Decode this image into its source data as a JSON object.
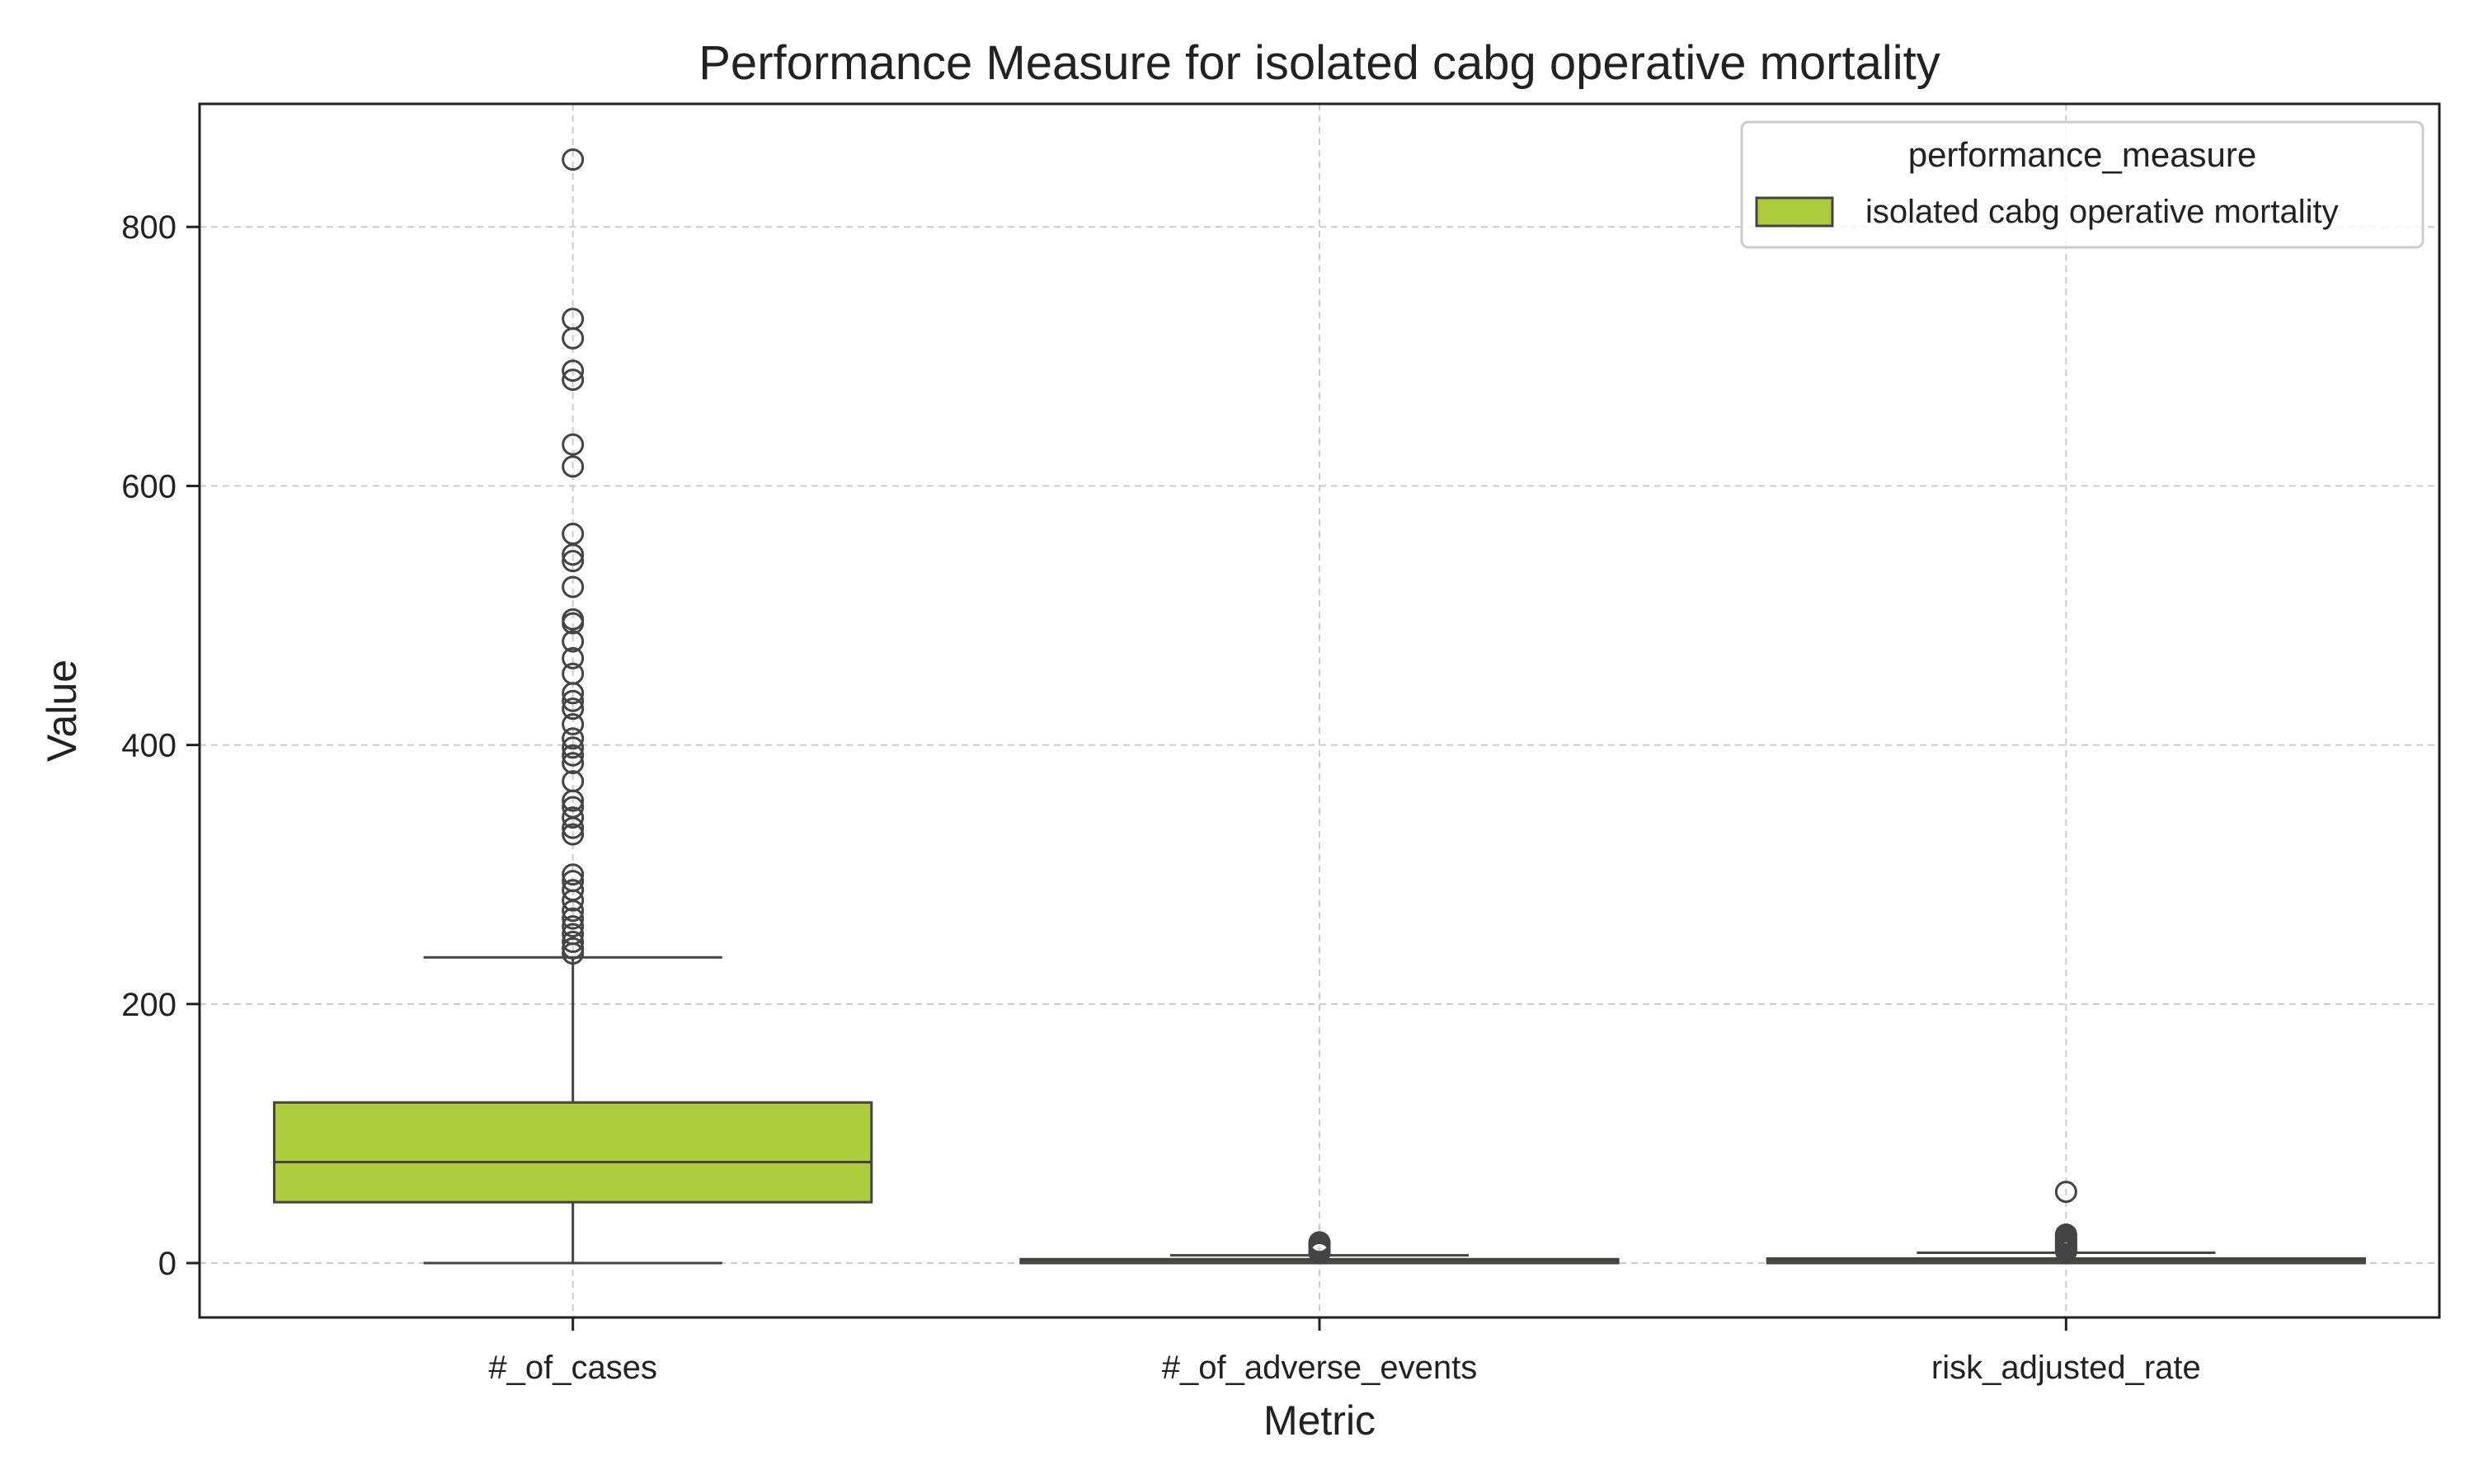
{
  "chart_data": {
    "type": "box",
    "title": "Performance Measure for isolated cabg operative mortality",
    "xlabel": "Metric",
    "ylabel": "Value",
    "ylim": [
      -42,
      895
    ],
    "yticks": [
      0,
      200,
      400,
      600,
      800
    ],
    "grid": true,
    "categories": [
      "#_of_cases",
      "#_of_adverse_events",
      "risk_adjusted_rate"
    ],
    "legend": {
      "title": "performance_measure",
      "position": "top-right",
      "entries": [
        {
          "label": "isolated cabg operative mortality",
          "color": "#adcc3c"
        }
      ]
    },
    "series": [
      {
        "name": "isolated cabg operative mortality",
        "color": "#adcc3c",
        "boxes": [
          {
            "category": "#_of_cases",
            "whisker_low": 0,
            "q1": 47,
            "median": 78,
            "q3": 124,
            "whisker_high": 236,
            "outliers": [
              852,
              729,
              714,
              689,
              682,
              632,
              615,
              563,
              547,
              542,
              522,
              497,
              494,
              480,
              467,
              455,
              440,
              434,
              428,
              416,
              405,
              398,
              392,
              386,
              372,
              357,
              352,
              344,
              336,
              331,
              300,
              295,
              288,
              280,
              272,
              266,
              260,
              254,
              248,
              243,
              239
            ]
          },
          {
            "category": "#_of_adverse_events",
            "whisker_low": 0,
            "q1": 0,
            "median": 2,
            "q3": 3,
            "whisker_high": 6,
            "outliers": [
              8,
              9,
              10,
              11,
              12,
              13,
              14,
              15,
              16
            ]
          },
          {
            "category": "risk_adjusted_rate",
            "whisker_low": 0,
            "q1": 0,
            "median": 2,
            "q3": 3.5,
            "whisker_high": 8,
            "outliers": [
              9,
              10,
              11,
              12,
              13,
              14,
              15,
              16,
              17,
              18,
              19,
              20,
              21,
              22,
              55
            ]
          }
        ]
      }
    ]
  }
}
